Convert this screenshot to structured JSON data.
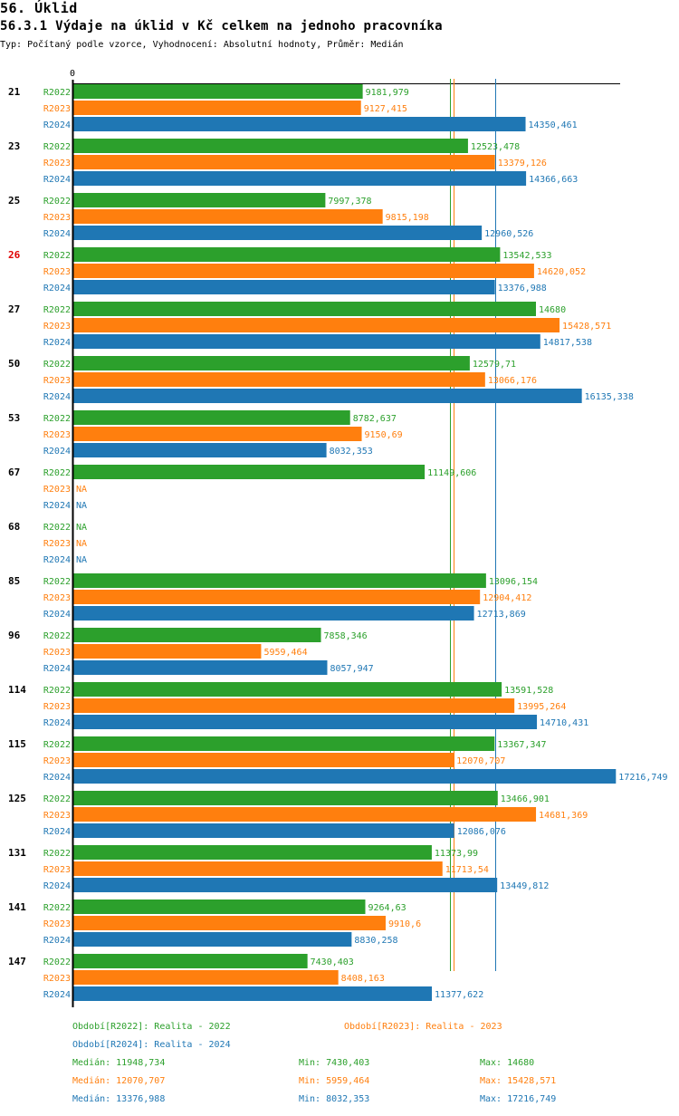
{
  "header": {
    "section_title": "56. Úklid",
    "chart_title": "56.3.1 Výdaje na úklid v Kč celkem na jednoho pracovníka",
    "subtitle": "Typ: Počítaný podle vzorce, Vyhodnocení: Absolutní hodnoty, Průměr: Medián"
  },
  "colors": {
    "R2022": "#2ca02c",
    "R2023": "#ff7f0e",
    "R2024": "#1f77b4",
    "highlight": "#e00000",
    "axis": "#000000"
  },
  "chart_data": {
    "type": "bar",
    "orientation": "horizontal",
    "title": "56.3.1 Výdaje na úklid v Kč celkem na jednoho pracovníka",
    "xlabel": "",
    "ylabel": "",
    "xlim": [
      0,
      17800
    ],
    "x_tick_labels": [
      "0"
    ],
    "grid": false,
    "highlighted_category": "26",
    "categories": [
      "21",
      "23",
      "25",
      "26",
      "27",
      "50",
      "53",
      "67",
      "68",
      "85",
      "96",
      "114",
      "115",
      "125",
      "131",
      "141",
      "147"
    ],
    "series": [
      {
        "name": "R2022",
        "color": "#2ca02c",
        "values": [
          9181.979,
          12523.478,
          7997.378,
          13542.533,
          14680,
          12579.71,
          8782.637,
          11149.606,
          null,
          13096.154,
          7858.346,
          13591.528,
          13367.347,
          13466.901,
          11373.99,
          9264.63,
          7430.403
        ],
        "labels": [
          "9181,979",
          "12523,478",
          "7997,378",
          "13542,533",
          "14680",
          "12579,71",
          "8782,637",
          "11149,606",
          "NA",
          "13096,154",
          "7858,346",
          "13591,528",
          "13367,347",
          "13466,901",
          "11373,99",
          "9264,63",
          "7430,403"
        ]
      },
      {
        "name": "R2023",
        "color": "#ff7f0e",
        "values": [
          9127.415,
          13379.126,
          9815.198,
          14620.052,
          15428.571,
          13066.176,
          9150.69,
          null,
          null,
          12904.412,
          5959.464,
          13995.264,
          12070.707,
          14681.369,
          11713.54,
          9910.6,
          8408.163
        ],
        "labels": [
          "9127,415",
          "13379,126",
          "9815,198",
          "14620,052",
          "15428,571",
          "13066,176",
          "9150,69",
          "NA",
          "NA",
          "12904,412",
          "5959,464",
          "13995,264",
          "12070,707",
          "14681,369",
          "11713,54",
          "9910,6",
          "8408,163"
        ]
      },
      {
        "name": "R2024",
        "color": "#1f77b4",
        "values": [
          14350.461,
          14366.663,
          12960.526,
          13376.988,
          14817.538,
          16135.338,
          8032.353,
          null,
          null,
          12713.869,
          8057.947,
          14710.431,
          17216.749,
          12086.076,
          13449.812,
          8830.258,
          11377.622
        ],
        "labels": [
          "14350,461",
          "14366,663",
          "12960,526",
          "13376,988",
          "14817,538",
          "16135,338",
          "8032,353",
          "NA",
          "NA",
          "12713,869",
          "8057,947",
          "14710,431",
          "17216,749",
          "12086,076",
          "13449,812",
          "8830,258",
          "11377,622"
        ]
      }
    ],
    "reference_lines": [
      {
        "series": "R2022",
        "type": "median",
        "value": 11948.734
      },
      {
        "series": "R2023",
        "type": "median",
        "value": 12070.707
      },
      {
        "series": "R2024",
        "type": "median",
        "value": 13376.988
      }
    ]
  },
  "legend": {
    "periods": [
      {
        "key": "R2022",
        "text": "Období[R2022]: Realita - 2022"
      },
      {
        "key": "R2023",
        "text": "Období[R2023]: Realita - 2023"
      },
      {
        "key": "R2024",
        "text": "Období[R2024]: Realita - 2024"
      }
    ],
    "stats": [
      {
        "key": "R2022",
        "median": "Medián: 11948,734",
        "min": "Min: 7430,403",
        "max": "Max: 14680"
      },
      {
        "key": "R2023",
        "median": "Medián: 12070,707",
        "min": "Min: 5959,464",
        "max": "Max: 15428,571"
      },
      {
        "key": "R2024",
        "median": "Medián: 13376,988",
        "min": "Min: 8032,353",
        "max": "Max: 17216,749"
      }
    ]
  }
}
